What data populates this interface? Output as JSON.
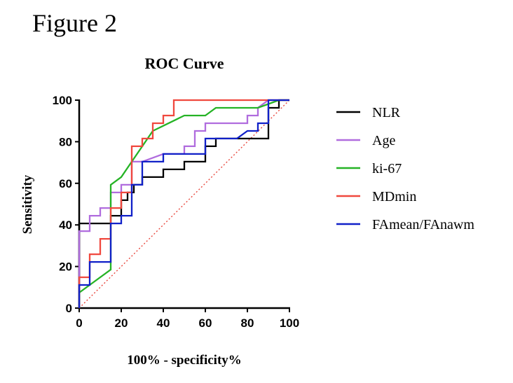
{
  "figure_label": "Figure 2",
  "chart_data": {
    "type": "line",
    "title": "ROC Curve",
    "xlabel": "100% - specificity%",
    "ylabel": "Sensitivity",
    "xlim": [
      0,
      100
    ],
    "ylim": [
      0,
      100
    ],
    "xticks": [
      "0",
      "20",
      "40",
      "60",
      "80",
      "100"
    ],
    "yticks": [
      "0",
      "20",
      "40",
      "60",
      "80",
      "100"
    ],
    "grid": false,
    "legend_position": "right",
    "reference_line": {
      "x": [
        0,
        100
      ],
      "y": [
        0,
        100
      ],
      "color": "#e8473d",
      "style": "dotted"
    },
    "series": [
      {
        "name": "NLR",
        "color": "#000000",
        "x": [
          0,
          0,
          15,
          15,
          20,
          20,
          23,
          23,
          26,
          26,
          30,
          30,
          35,
          35,
          40,
          40,
          50,
          50,
          60,
          60,
          65,
          65,
          90,
          90,
          95,
          95,
          100
        ],
        "y": [
          0,
          40.7,
          40.7,
          44.4,
          44.4,
          51.9,
          51.9,
          55.6,
          55.6,
          59.3,
          59.3,
          63,
          63,
          63,
          63,
          66.7,
          66.7,
          70.4,
          70.4,
          77.8,
          77.8,
          81.5,
          81.5,
          96.3,
          96.3,
          100,
          100
        ]
      },
      {
        "name": "Age",
        "color": "#b06cde",
        "x": [
          0,
          0,
          5,
          5,
          10,
          10,
          15,
          15,
          20,
          20,
          25,
          25,
          30,
          30,
          40,
          40,
          50,
          50,
          55,
          55,
          60,
          60,
          80,
          80,
          85,
          85,
          90,
          100
        ],
        "y": [
          0,
          37,
          37,
          44.4,
          44.4,
          48.1,
          48.1,
          55.6,
          55.6,
          59.3,
          59.3,
          70.4,
          70.4,
          70.4,
          74.1,
          74.1,
          74.1,
          77.8,
          77.8,
          85.2,
          85.2,
          88.9,
          88.9,
          92.6,
          92.6,
          96.3,
          100,
          100
        ]
      },
      {
        "name": "ki-67",
        "color": "#25b325",
        "x": [
          0,
          0,
          5,
          15,
          15,
          20,
          25,
          35,
          50,
          60,
          65,
          85,
          95,
          100
        ],
        "y": [
          0,
          7.4,
          11.1,
          18.5,
          59.3,
          63,
          70.4,
          85.2,
          92.6,
          92.6,
          96.3,
          96.3,
          100,
          100
        ]
      },
      {
        "name": "MDmin",
        "color": "#f0483e",
        "x": [
          0,
          0,
          5,
          5,
          10,
          10,
          15,
          15,
          20,
          20,
          25,
          25,
          30,
          30,
          35,
          35,
          40,
          40,
          45,
          45,
          90,
          100
        ],
        "y": [
          0,
          14.8,
          14.8,
          25.9,
          25.9,
          33.3,
          33.3,
          48.1,
          48.1,
          55.6,
          55.6,
          77.8,
          77.8,
          81.5,
          81.5,
          88.9,
          88.9,
          92.6,
          92.6,
          100,
          100,
          100
        ]
      },
      {
        "name": "FAmean/FAnawm",
        "color": "#1020c8",
        "x": [
          0,
          0,
          5,
          5,
          15,
          15,
          20,
          20,
          25,
          25,
          30,
          30,
          40,
          40,
          60,
          60,
          75,
          80,
          85,
          85,
          90,
          90,
          100
        ],
        "y": [
          0,
          11.1,
          11.1,
          22.2,
          22.2,
          40.7,
          40.7,
          44.4,
          44.4,
          59.3,
          59.3,
          70.4,
          70.4,
          74.1,
          74.1,
          81.5,
          81.5,
          85.2,
          85.2,
          88.9,
          88.9,
          100,
          100
        ]
      }
    ]
  }
}
